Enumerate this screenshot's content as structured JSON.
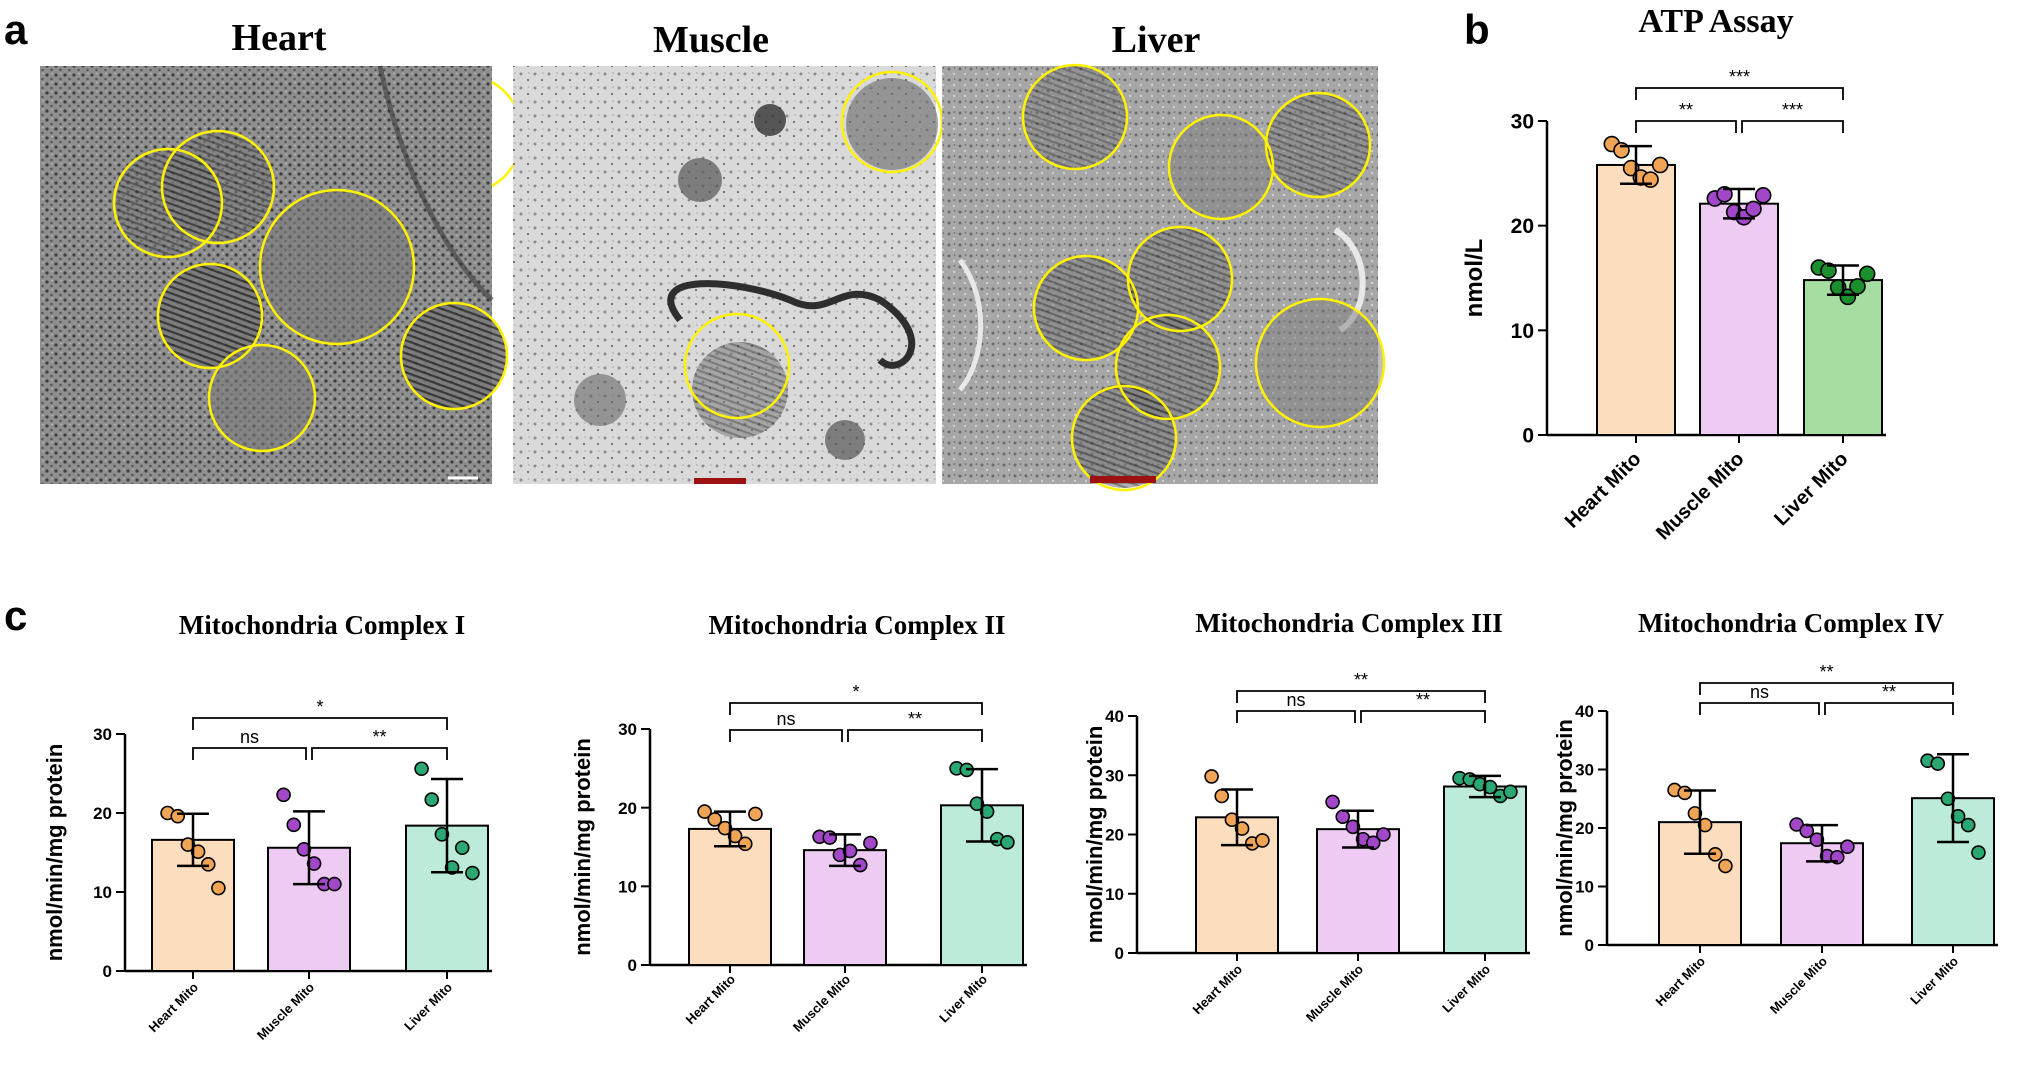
{
  "figure": {
    "panel_labels": [
      "a",
      "b",
      "c"
    ],
    "micrograph_titles": [
      "Heart",
      "Muscle",
      "Liver"
    ]
  },
  "colors": {
    "heart_fill": "#FCDDBE",
    "muscle_fill": "#EECBF2",
    "liver_fill_b": "#A6DEA2",
    "liver_fill_c": "#BDEBD9",
    "heart_dot": "#F0A455",
    "muscle_dot": "#A347C9",
    "liver_dot_b": "#1B8E2D",
    "liver_dot_c": "#2BA774",
    "circle": "#FFF200"
  },
  "chart_data": [
    {
      "id": "atp",
      "type": "bar",
      "title": "ATP Assay",
      "xlabel": "",
      "ylabel": "nmol/L",
      "categories": [
        "Heart Mito",
        "Muscle Mito",
        "Liver Mito"
      ],
      "values": [
        25.8,
        22.1,
        14.8
      ],
      "errors": [
        1.8,
        1.4,
        1.4
      ],
      "points": [
        [
          27.8,
          27.2,
          25.5,
          24.6,
          24.4,
          25.8
        ],
        [
          22.6,
          23.0,
          21.3,
          20.8,
          21.6,
          22.9
        ],
        [
          16.0,
          15.7,
          14.1,
          13.2,
          14.2,
          15.4
        ]
      ],
      "ylim": [
        0,
        30
      ],
      "yticks": [
        0,
        10,
        20,
        30
      ],
      "comparisons": [
        {
          "from": 0,
          "to": 1,
          "label": "**"
        },
        {
          "from": 1,
          "to": 2,
          "label": "***"
        },
        {
          "from": 0,
          "to": 2,
          "label": "***"
        }
      ],
      "grid": false,
      "legend": "none"
    },
    {
      "id": "c1",
      "type": "bar",
      "title": "Mitochondria Complex I",
      "xlabel": "",
      "ylabel": "nmol/min/mg protein",
      "categories": [
        "Heart Mito",
        "Muscle Mito",
        "Liver Mito"
      ],
      "values": [
        16.6,
        15.6,
        18.4
      ],
      "errors": [
        3.3,
        4.6,
        5.9
      ],
      "points": [
        [
          20.0,
          19.6,
          16.0,
          15.1,
          13.5,
          10.5
        ],
        [
          22.3,
          18.5,
          15.4,
          13.6,
          11.0,
          11.0
        ],
        [
          25.6,
          21.7,
          17.3,
          13.1,
          15.6,
          12.4
        ]
      ],
      "ylim": [
        0,
        30
      ],
      "yticks": [
        0,
        10,
        20,
        30
      ],
      "comparisons": [
        {
          "from": 0,
          "to": 1,
          "label": "ns"
        },
        {
          "from": 1,
          "to": 2,
          "label": "**"
        },
        {
          "from": 0,
          "to": 2,
          "label": "*"
        }
      ],
      "grid": false,
      "legend": "none"
    },
    {
      "id": "c2",
      "type": "bar",
      "title": "Mitochondria Complex II",
      "xlabel": "",
      "ylabel": "nmol/min/mg protein",
      "categories": [
        "Heart Mito",
        "Muscle Mito",
        "Liver Mito"
      ],
      "values": [
        17.3,
        14.6,
        20.3
      ],
      "errors": [
        2.2,
        2.0,
        4.6
      ],
      "points": [
        [
          19.5,
          18.5,
          17.4,
          16.4,
          15.4,
          19.2
        ],
        [
          16.3,
          16.2,
          14.0,
          14.5,
          12.7,
          15.5
        ],
        [
          25.0,
          24.8,
          20.5,
          19.5,
          16.0,
          15.6
        ]
      ],
      "ylim": [
        0,
        30
      ],
      "yticks": [
        0,
        10,
        20,
        30
      ],
      "comparisons": [
        {
          "from": 0,
          "to": 1,
          "label": "ns"
        },
        {
          "from": 1,
          "to": 2,
          "label": "**"
        },
        {
          "from": 0,
          "to": 2,
          "label": "*"
        }
      ],
      "grid": false,
      "legend": "none"
    },
    {
      "id": "c3",
      "type": "bar",
      "title": "Mitochondria Complex III",
      "xlabel": "",
      "ylabel": "nmol/min/mg protein",
      "categories": [
        "Heart Mito",
        "Muscle Mito",
        "Liver Mito"
      ],
      "values": [
        22.9,
        20.9,
        28.1
      ],
      "errors": [
        4.7,
        3.1,
        1.8
      ],
      "points": [
        [
          29.8,
          26.5,
          22.5,
          21.0,
          18.5,
          19.0
        ],
        [
          25.5,
          23.0,
          21.3,
          19.2,
          18.6,
          20.0
        ],
        [
          29.5,
          29.3,
          28.5,
          28.0,
          26.5,
          27.2
        ]
      ],
      "ylim": [
        0,
        40
      ],
      "yticks": [
        0,
        10,
        20,
        30,
        40
      ],
      "comparisons": [
        {
          "from": 0,
          "to": 1,
          "label": "ns"
        },
        {
          "from": 1,
          "to": 2,
          "label": "**"
        },
        {
          "from": 0,
          "to": 2,
          "label": "**"
        }
      ],
      "grid": false,
      "legend": "none"
    },
    {
      "id": "c4",
      "type": "bar",
      "title": "Mitochondria Complex IV",
      "xlabel": "",
      "ylabel": "nmol/min/mg protein",
      "categories": [
        "Heart Mito",
        "Muscle Mito",
        "Liver Mito"
      ],
      "values": [
        21.0,
        17.4,
        25.1
      ],
      "errors": [
        5.4,
        3.1,
        7.5
      ],
      "points": [
        [
          26.5,
          26.0,
          22.5,
          20.5,
          15.5,
          13.5
        ],
        [
          20.6,
          19.5,
          18.0,
          15.2,
          15.0,
          16.8
        ],
        [
          31.5,
          31.0,
          25.0,
          22.0,
          20.5,
          15.8
        ]
      ],
      "ylim": [
        0,
        40
      ],
      "yticks": [
        0,
        10,
        20,
        30,
        40
      ],
      "comparisons": [
        {
          "from": 0,
          "to": 1,
          "label": "ns"
        },
        {
          "from": 1,
          "to": 2,
          "label": "**"
        },
        {
          "from": 0,
          "to": 2,
          "label": "**"
        }
      ],
      "grid": false,
      "legend": "none"
    }
  ]
}
